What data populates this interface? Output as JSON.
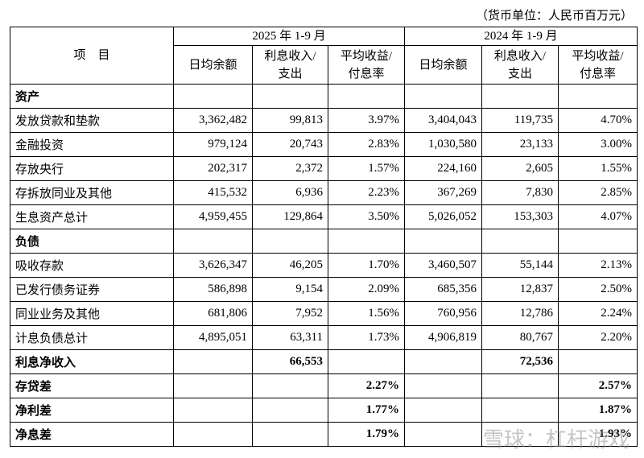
{
  "header": {
    "unit": "（货币单位：人民币百万元）"
  },
  "table": {
    "item_header": "项　目",
    "periods": [
      "2025 年 1-9 月",
      "2024 年 1-9 月"
    ],
    "columns": [
      "日均余额",
      "利息收入/\n支出",
      "平均收益/\n付息率",
      "日均余额",
      "利息收入/\n支出",
      "平均收益/\n付息率"
    ],
    "rows": [
      [
        "资产",
        null,
        null,
        null,
        null,
        null,
        null
      ],
      [
        "发放贷款和垫款",
        "3,362,482",
        "99,813",
        "3.97%",
        "3,404,043",
        "119,735",
        "4.70%"
      ],
      [
        "金融投资",
        "979,124",
        "20,743",
        "2.83%",
        "1,030,580",
        "23,133",
        "3.00%"
      ],
      [
        "存放央行",
        "202,317",
        "2,372",
        "1.57%",
        "224,160",
        "2,605",
        "1.55%"
      ],
      [
        "存拆放同业及其他",
        "415,532",
        "6,936",
        "2.23%",
        "367,269",
        "7,830",
        "2.85%"
      ],
      [
        "生息资产总计",
        "4,959,455",
        "129,864",
        "3.50%",
        "5,026,052",
        "153,303",
        "4.07%"
      ],
      [
        "负债",
        null,
        null,
        null,
        null,
        null,
        null
      ],
      [
        "吸收存款",
        "3,626,347",
        "46,205",
        "1.70%",
        "3,460,507",
        "55,144",
        "2.13%"
      ],
      [
        "已发行债务证券",
        "586,898",
        "9,154",
        "2.09%",
        "685,356",
        "12,837",
        "2.50%"
      ],
      [
        "同业业务及其他",
        "681,806",
        "7,952",
        "1.56%",
        "760,956",
        "12,786",
        "2.24%"
      ],
      [
        "计息负债总计",
        "4,895,051",
        "63,311",
        "1.73%",
        "4,906,819",
        "80,767",
        "2.20%"
      ],
      [
        "利息净收入",
        null,
        "66,553",
        null,
        null,
        "72,536",
        null
      ],
      [
        "存贷差",
        null,
        null,
        "2.27%",
        null,
        null,
        "2.57%"
      ],
      [
        "净利差",
        null,
        null,
        "1.77%",
        null,
        null,
        "1.87%"
      ],
      [
        "净息差",
        null,
        null,
        "1.79%",
        null,
        null,
        "1.93%"
      ]
    ]
  },
  "watermark": "雪球：杠杆游戏"
}
